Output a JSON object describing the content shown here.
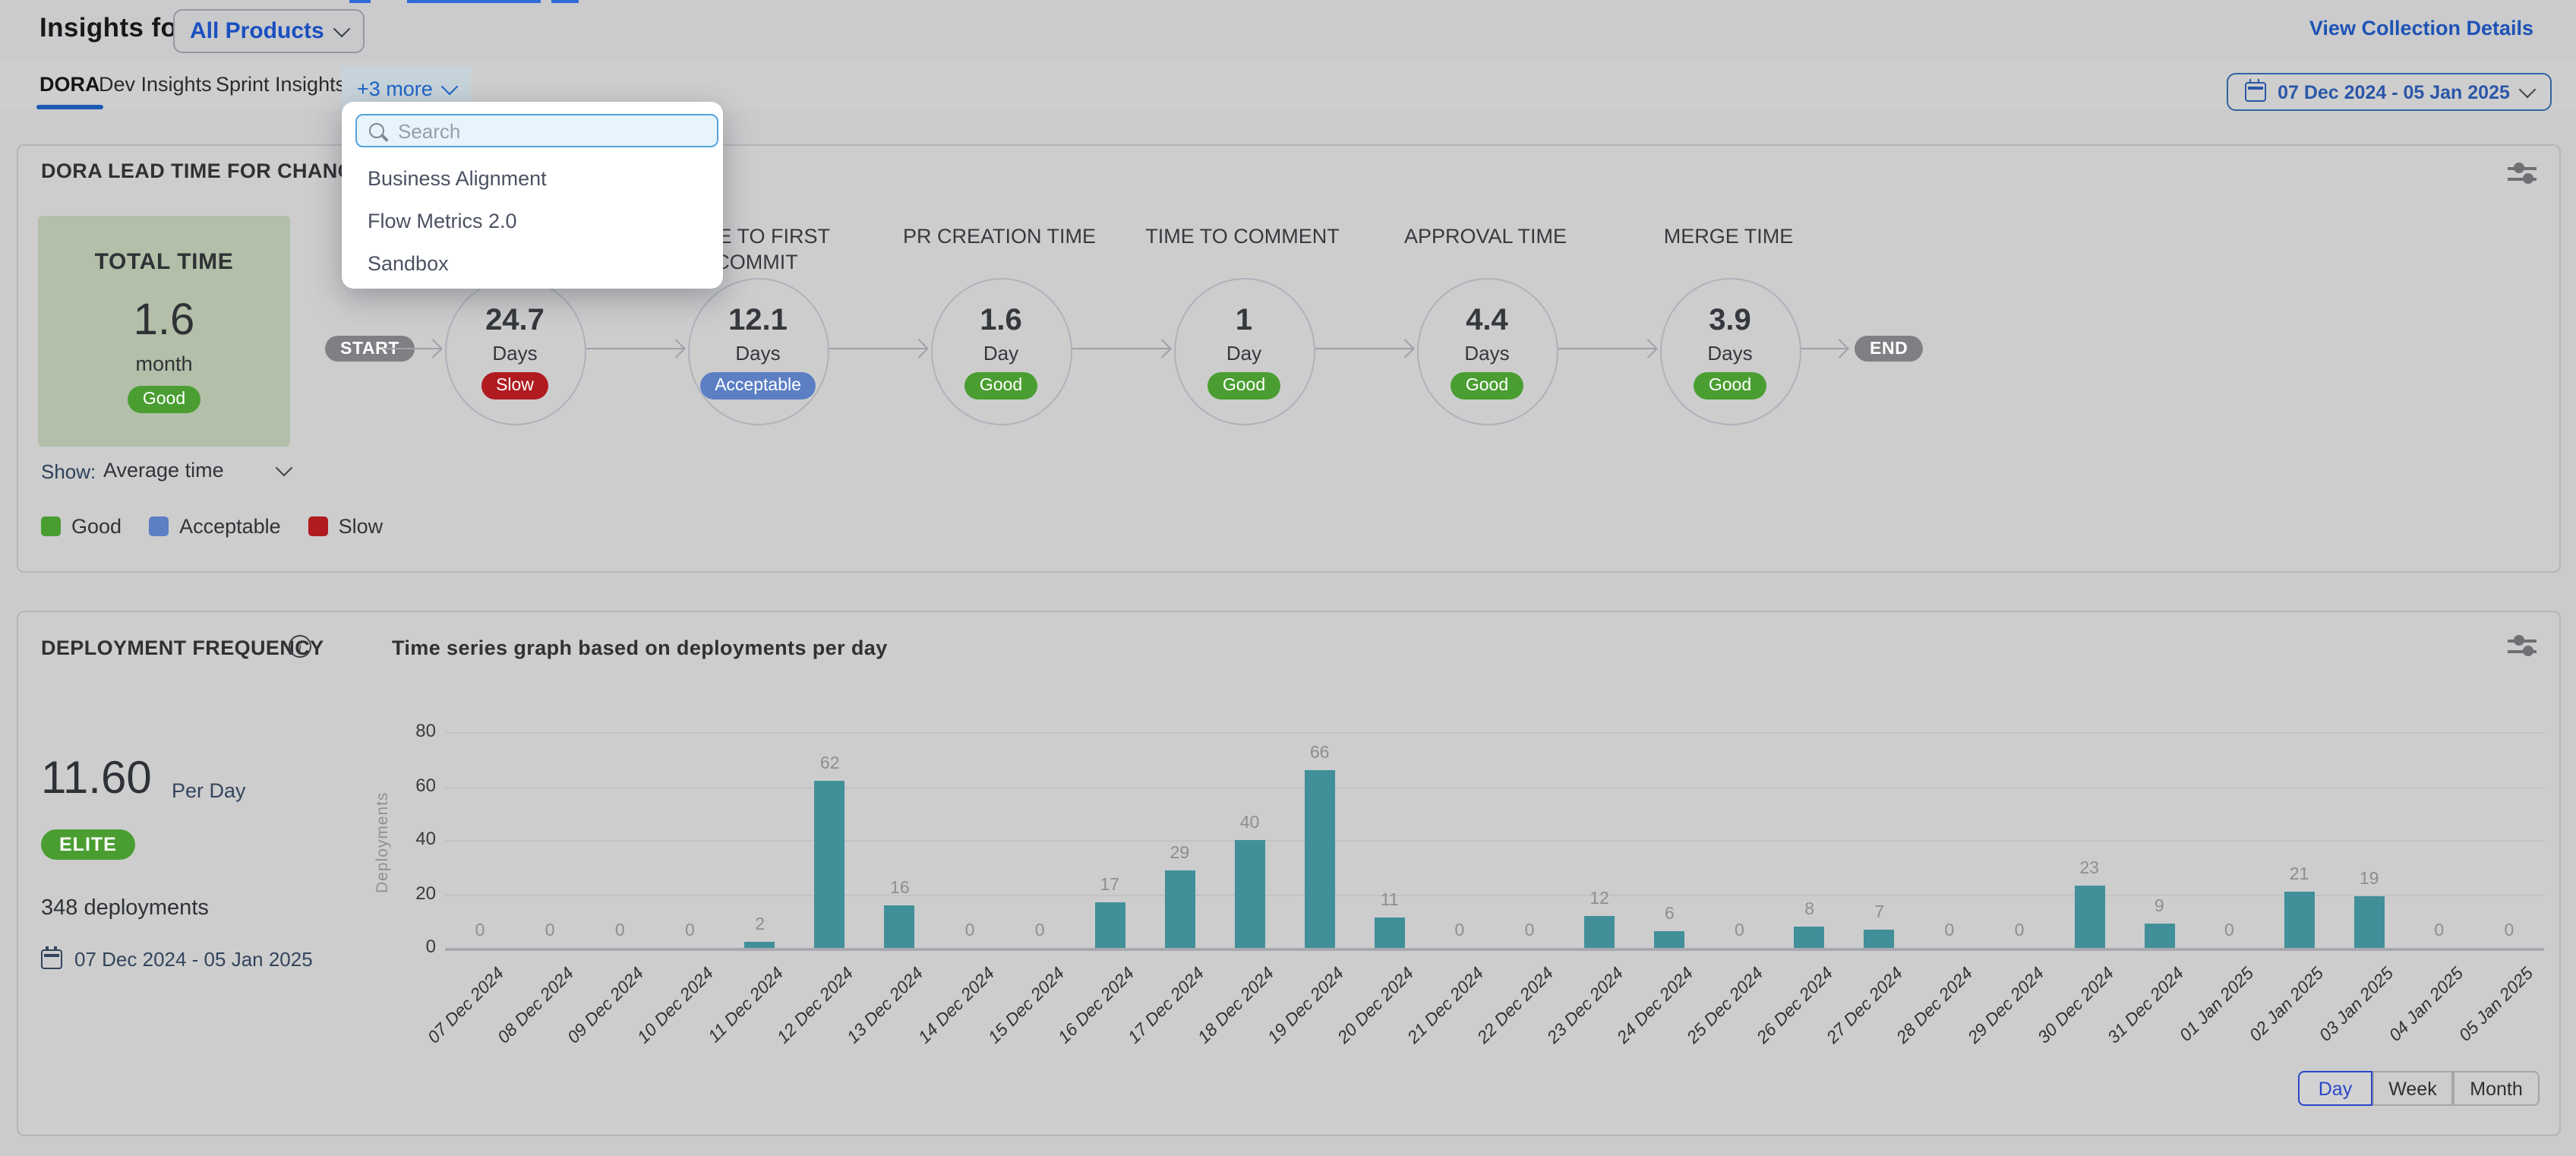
{
  "header": {
    "title_prefix": "Insights for",
    "collection_selector": "All Products",
    "view_collection_details": "View Collection Details",
    "date_range": "07 Dec 2024 - 05 Jan 2025"
  },
  "tabs": {
    "items": [
      "DORA",
      "Dev Insights",
      "Sprint Insights"
    ],
    "active": "DORA",
    "more_label": "+3 more"
  },
  "more_dropdown": {
    "search_placeholder": "Search",
    "items": [
      "Business Alignment",
      "Flow Metrics 2.0",
      "Sandbox"
    ]
  },
  "lead_time_card": {
    "title": "DORA LEAD TIME FOR CHANGES REPORT",
    "total": {
      "label": "TOTAL TIME",
      "value": "1.6",
      "unit": "month",
      "rating": "Good"
    },
    "start_label": "START",
    "end_label": "END",
    "stages": [
      {
        "label": "",
        "value": "24.7",
        "unit": "Days",
        "rating": "Slow"
      },
      {
        "label": "TIME TO FIRST COMMIT",
        "value": "12.1",
        "unit": "Days",
        "rating": "Acceptable"
      },
      {
        "label": "PR CREATION TIME",
        "value": "1.6",
        "unit": "Day",
        "rating": "Good"
      },
      {
        "label": "TIME TO COMMENT",
        "value": "1",
        "unit": "Day",
        "rating": "Good"
      },
      {
        "label": "APPROVAL TIME",
        "value": "4.4",
        "unit": "Days",
        "rating": "Good"
      },
      {
        "label": "MERGE TIME",
        "value": "3.9",
        "unit": "Days",
        "rating": "Good"
      }
    ],
    "show_label": "Show:",
    "show_value": "Average time",
    "legend": [
      {
        "label": "Good",
        "color": "#4a9e31"
      },
      {
        "label": "Acceptable",
        "color": "#5c7fc4"
      },
      {
        "label": "Slow",
        "color": "#b01b1f"
      }
    ]
  },
  "deployment_card": {
    "title": "DEPLOYMENT FREQUENCY",
    "subtitle": "Time series graph based on deployments per day",
    "rate_value": "11.60",
    "rate_unit": "Per Day",
    "badge": "ELITE",
    "total_label": "348 deployments",
    "date_range": "07 Dec 2024 - 05 Jan 2025",
    "granularity": [
      "Day",
      "Week",
      "Month"
    ],
    "granularity_active": "Day"
  },
  "chart_data": {
    "type": "bar",
    "title": "Time series graph based on deployments per day",
    "xlabel": "",
    "ylabel": "Deployments",
    "ylim": [
      0,
      80
    ],
    "yticks": [
      0,
      20,
      40,
      60,
      80
    ],
    "grid": true,
    "legend_position": "none",
    "bar_color": "#418f99",
    "categories": [
      "07 Dec 2024",
      "08 Dec 2024",
      "09 Dec 2024",
      "10 Dec 2024",
      "11 Dec 2024",
      "12 Dec 2024",
      "13 Dec 2024",
      "14 Dec 2024",
      "15 Dec 2024",
      "16 Dec 2024",
      "17 Dec 2024",
      "18 Dec 2024",
      "19 Dec 2024",
      "20 Dec 2024",
      "21 Dec 2024",
      "22 Dec 2024",
      "23 Dec 2024",
      "24 Dec 2024",
      "25 Dec 2024",
      "26 Dec 2024",
      "27 Dec 2024",
      "28 Dec 2024",
      "29 Dec 2024",
      "30 Dec 2024",
      "31 Dec 2024",
      "01 Jan 2025",
      "02 Jan 2025",
      "03 Jan 2025",
      "04 Jan 2025",
      "05 Jan 2025"
    ],
    "values": [
      0,
      0,
      0,
      0,
      2,
      62,
      16,
      0,
      0,
      17,
      29,
      40,
      66,
      11,
      0,
      0,
      12,
      6,
      0,
      8,
      7,
      0,
      0,
      23,
      9,
      0,
      21,
      19,
      0,
      0
    ]
  },
  "colors": {
    "rating": {
      "Good": "#4a9e31",
      "Acceptable": "#5c7fc4",
      "Slow": "#b01b1f"
    },
    "elite_badge": "#4a9e31",
    "node_gray": "#7f8083",
    "brand_blue": "#1d53b5",
    "tab_underline": "#1d5ab4",
    "bar": "#418f99",
    "total_box_bg": "#b3bfa9"
  }
}
